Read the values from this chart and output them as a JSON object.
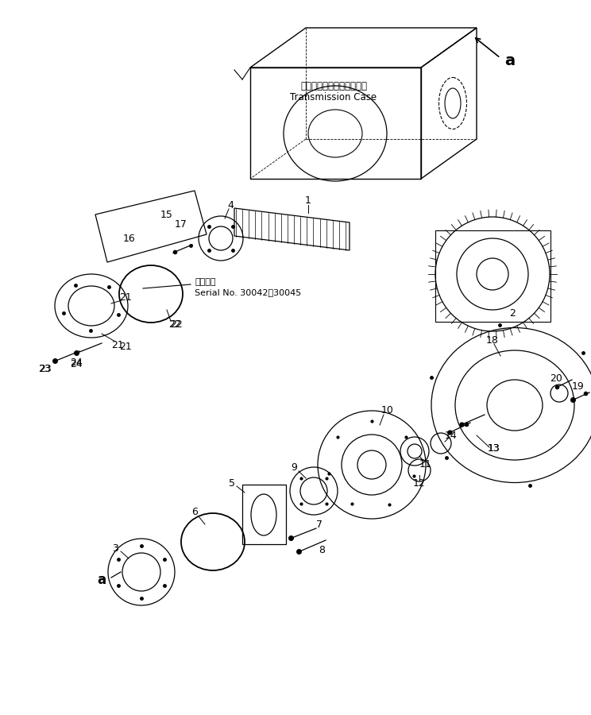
{
  "bg_color": "#ffffff",
  "fig_width": 7.44,
  "fig_height": 9.0,
  "dpi": 100,
  "transmission_line1": "トランスミッションケース",
  "transmission_line2": "Transmission Case",
  "serial_line1": "適用号機",
  "serial_line2": "Serial No. 30042～30045"
}
